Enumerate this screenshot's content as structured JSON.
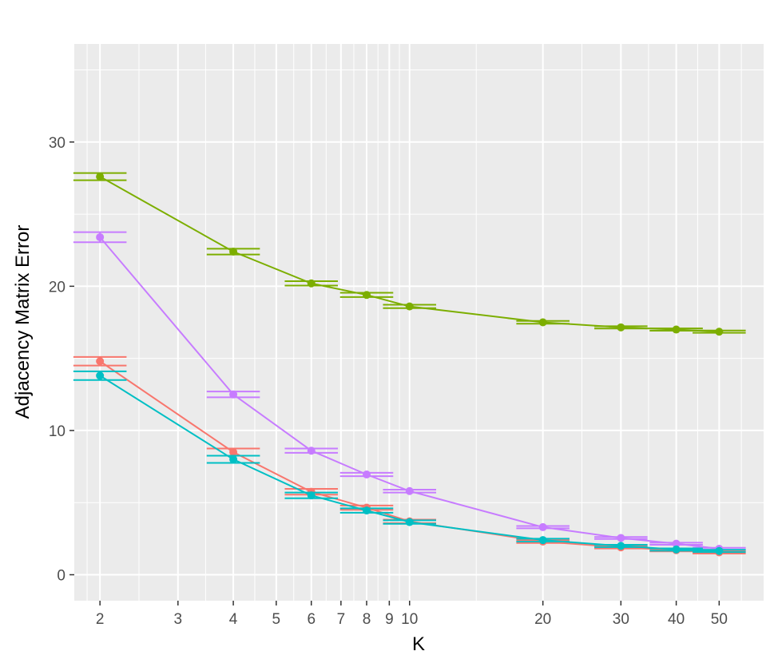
{
  "chart_data": {
    "type": "line",
    "title": "",
    "xlabel": "K",
    "ylabel": "Adjacency Matrix Error",
    "x_scale": "log",
    "xlim": [
      1.75,
      63
    ],
    "ylim": [
      -1.8,
      36.8
    ],
    "x_ticks": [
      2,
      3,
      4,
      5,
      6,
      7,
      8,
      9,
      10,
      20,
      30,
      40,
      50
    ],
    "x_tick_labels": [
      "2",
      "3",
      "4",
      "5",
      "6",
      "7",
      "8",
      "9",
      "10",
      "20",
      "30",
      "40",
      "50"
    ],
    "y_ticks": [
      0,
      10,
      20,
      30
    ],
    "y_tick_labels": [
      "0",
      "10",
      "20",
      "30"
    ],
    "grid": true,
    "legend": "none",
    "x": [
      2,
      4,
      6,
      8,
      10,
      20,
      30,
      40,
      50
    ],
    "series": [
      {
        "color": "#7CAE00",
        "values": [
          27.6,
          22.4,
          20.2,
          19.4,
          18.6,
          17.5,
          17.15,
          17.0,
          16.85
        ],
        "err": [
          0.25,
          0.2,
          0.15,
          0.15,
          0.12,
          0.1,
          0.08,
          0.08,
          0.08
        ]
      },
      {
        "color": "#C77CFF",
        "values": [
          23.4,
          12.5,
          8.6,
          6.95,
          5.8,
          3.3,
          2.55,
          2.15,
          1.8
        ],
        "err": [
          0.35,
          0.2,
          0.15,
          0.12,
          0.1,
          0.08,
          0.07,
          0.07,
          0.07
        ]
      },
      {
        "color": "#F8766D",
        "values": [
          14.8,
          8.5,
          5.75,
          4.65,
          3.7,
          2.3,
          1.9,
          1.7,
          1.55
        ],
        "err": [
          0.3,
          0.25,
          0.2,
          0.15,
          0.12,
          0.1,
          0.08,
          0.08,
          0.08
        ]
      },
      {
        "color": "#00BFC4",
        "values": [
          13.8,
          8.0,
          5.5,
          4.45,
          3.65,
          2.4,
          2.0,
          1.75,
          1.65
        ],
        "err": [
          0.3,
          0.25,
          0.2,
          0.15,
          0.12,
          0.1,
          0.08,
          0.08,
          0.08
        ]
      }
    ]
  }
}
